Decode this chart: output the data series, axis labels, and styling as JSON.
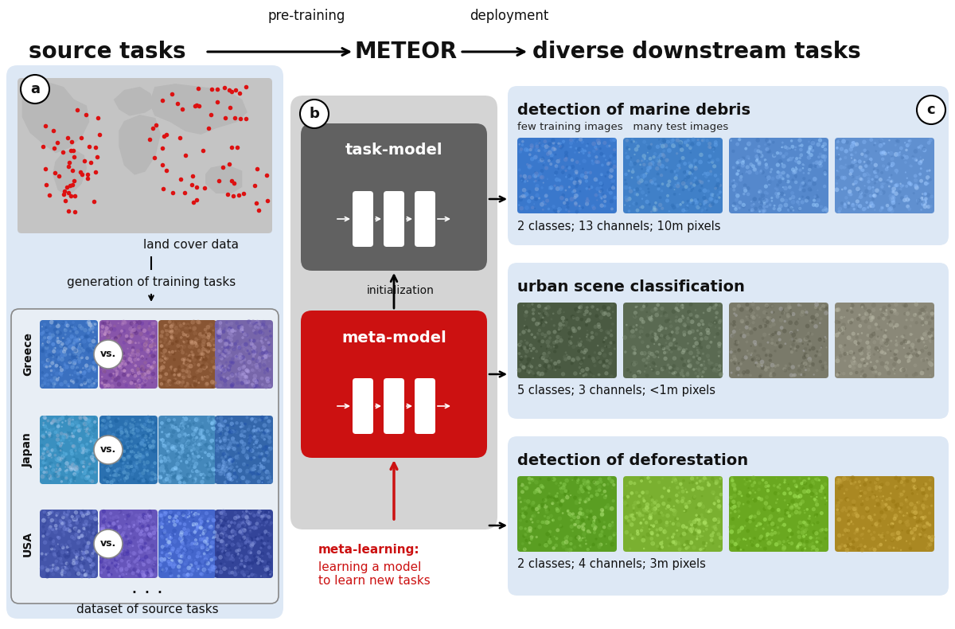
{
  "bg_white": "#ffffff",
  "panel_a_bg": "#dde8f5",
  "panel_b_bg": "#d4d4d4",
  "panel_c_bg": "#dde8f5",
  "task_model_color": "#616161",
  "meta_model_color": "#cc1111",
  "red_color": "#cc1111",
  "black": "#111111",
  "white": "#ffffff",
  "map_bg": "#c8c8c8",
  "map_land": "#b0b0b0",
  "inner_box_bg": "#e8eef5",
  "inner_box_ec": "#888888",
  "title_fontsize": 18,
  "header_small_fontsize": 12,
  "label_fontsize": 11,
  "small_fontsize": 9.5,
  "info_fontsize": 10,
  "nn_label_fontsize": 13,
  "top_labels": [
    "source tasks",
    "METEOR",
    "diverse downstream tasks"
  ],
  "top_small": [
    "pre-training",
    "deployment"
  ],
  "panel_labels": [
    "a",
    "b",
    "c"
  ],
  "task_model_text": "task-model",
  "meta_model_text": "meta-model",
  "init_text": "initialization",
  "meta_bold": "meta-learning:",
  "meta_text": "learning a model\nto learn new tasks",
  "land_text": "land cover data",
  "gen_text": "generation of training tasks",
  "dataset_text": "dataset of source tasks",
  "vs_text": "vs.",
  "country_labels": [
    "Greece",
    "Japan",
    "USA"
  ],
  "c_titles": [
    "detection of marine debris",
    "urban scene classification",
    "detection of deforestation"
  ],
  "c_subtitles": [
    "few training images   many test images",
    "",
    ""
  ],
  "c_info": [
    "2 classes; 13 channels; 10m pixels",
    "5 classes; 3 channels; <1m pixels",
    "2 classes; 4 channels; 3m pixels"
  ]
}
